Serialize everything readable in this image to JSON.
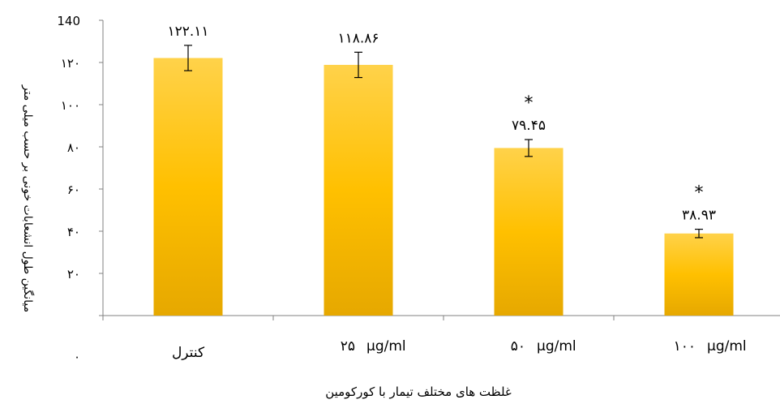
{
  "chart_data": {
    "type": "bar",
    "title": "",
    "xlabel": "غلظت های مختلف تیمار با کورکومین",
    "ylabel": "میانگین  طول انشعابات خونی بر حسب میلی متر",
    "ylim": [
      0,
      140
    ],
    "ytick_values": [
      0,
      20,
      40,
      60,
      80,
      100,
      120,
      140
    ],
    "ytick_labels": [
      "۰",
      "۲۰",
      "۴۰",
      "۶۰",
      "۸۰",
      "۱۰۰",
      "۱۲۰",
      "140"
    ],
    "categories": [
      {
        "label": "کنترل",
        "unit": ""
      },
      {
        "label": "۲۵",
        "unit": "µg/ml"
      },
      {
        "label": "۵۰",
        "unit": "µg/ml"
      },
      {
        "label": "۱۰۰",
        "unit": "µg/ml"
      }
    ],
    "values": [
      122.11,
      118.86,
      79.45,
      38.93
    ],
    "errors": [
      6,
      6,
      4,
      2
    ],
    "value_labels": [
      "۱۲۲.۱۱",
      "۱۱۸.۸۶",
      "۷۹.۴۵",
      "۳۸.۹۳"
    ],
    "significance": [
      "",
      "",
      "*",
      "*"
    ],
    "colors": {
      "bar_top": "#ffd24a",
      "bar_mid": "#ffc000",
      "bar_bottom": "#e6a800",
      "axis": "#808080"
    }
  }
}
